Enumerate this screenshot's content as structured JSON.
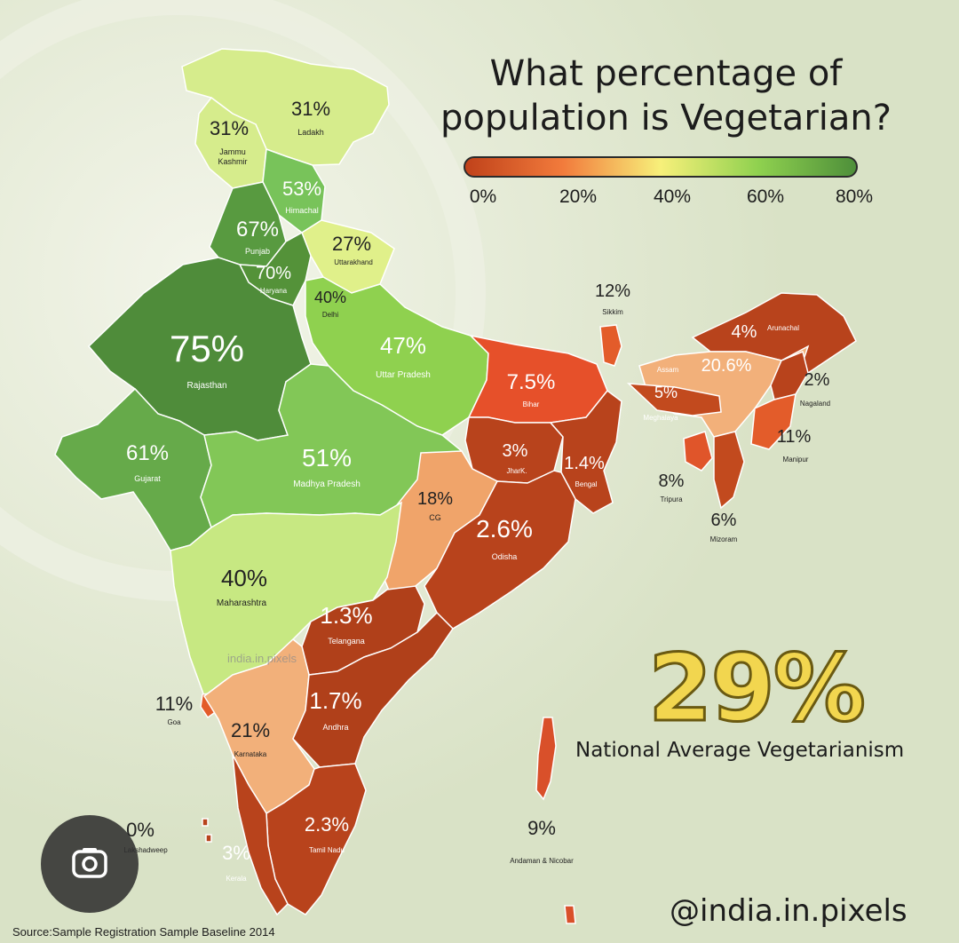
{
  "title_line1": "What percentage of",
  "title_line2": "population is Vegetarian?",
  "legend": {
    "ticks": [
      "0%",
      "20%",
      "40%",
      "60%",
      "80%"
    ],
    "colors": [
      "#c0421a",
      "#f27b3c",
      "#f7f07a",
      "#8fd14f",
      "#4e8f3a"
    ]
  },
  "national_average": {
    "value": "29%",
    "caption": "National Average Vegetarianism"
  },
  "handle": "@india.in.pixels",
  "source": "Source:Sample Registration Sample Baseline 2014",
  "watermark": "india.in.pixels",
  "lens_icon": "google-lens-icon",
  "regions": [
    {
      "id": "ladakh",
      "pct": "31%",
      "name": "Ladakh",
      "color": "#d6ec8c"
    },
    {
      "id": "jk",
      "pct": "31%",
      "name": "Jammu\nKashmir",
      "color": "#d6ec8c"
    },
    {
      "id": "himachal",
      "pct": "53%",
      "name": "Himachal",
      "color": "#78c35a"
    },
    {
      "id": "punjab",
      "pct": "67%",
      "name": "Punjab",
      "color": "#589a40"
    },
    {
      "id": "uttarakhand",
      "pct": "27%",
      "name": "Uttarakhand",
      "color": "#e0f08a"
    },
    {
      "id": "haryana",
      "pct": "70%",
      "name": "Haryana",
      "color": "#549239"
    },
    {
      "id": "delhi",
      "pct": "40%",
      "name": "Delhi",
      "color": "#9fd65a"
    },
    {
      "id": "rajasthan",
      "pct": "75%",
      "name": "Rajasthan",
      "color": "#4f8c3a"
    },
    {
      "id": "up",
      "pct": "47%",
      "name": "Uttar Pradesh",
      "color": "#8fd14f"
    },
    {
      "id": "gujarat",
      "pct": "61%",
      "name": "Gujarat",
      "color": "#66aa4a"
    },
    {
      "id": "mp",
      "pct": "51%",
      "name": "Madhya Pradesh",
      "color": "#82c757"
    },
    {
      "id": "bihar",
      "pct": "7.5%",
      "name": "Bihar",
      "color": "#e6502a"
    },
    {
      "id": "jharkhand",
      "pct": "3%",
      "name": "JharK.",
      "color": "#b8431c"
    },
    {
      "id": "bengal",
      "pct": "1.4%",
      "name": "Bengal",
      "color": "#b8431c"
    },
    {
      "id": "cg",
      "pct": "18%",
      "name": "CG",
      "color": "#f0a46a"
    },
    {
      "id": "odisha",
      "pct": "2.6%",
      "name": "Odisha",
      "color": "#b8431c"
    },
    {
      "id": "maharashtra",
      "pct": "40%",
      "name": "Maharashtra",
      "color": "#c7e882"
    },
    {
      "id": "telangana",
      "pct": "1.3%",
      "name": "Telangana",
      "color": "#b0401a"
    },
    {
      "id": "goa",
      "pct": "11%",
      "name": "Goa",
      "color": "#e35c2a"
    },
    {
      "id": "karnataka",
      "pct": "21%",
      "name": "Karnataka",
      "color": "#f2b07a"
    },
    {
      "id": "andhra",
      "pct": "1.7%",
      "name": "Andhra",
      "color": "#b0401a"
    },
    {
      "id": "tamilnadu",
      "pct": "2.3%",
      "name": "Tamil Nadu",
      "color": "#b8431c"
    },
    {
      "id": "kerala",
      "pct": "3%",
      "name": "Kerala",
      "color": "#b8431c"
    },
    {
      "id": "lakshadweep",
      "pct": "0%",
      "name": "Lakshadweep",
      "color": "#b8431c"
    },
    {
      "id": "andaman",
      "pct": "9%",
      "name": "Andaman & Nicobar",
      "color": "#d9502a"
    },
    {
      "id": "sikkim",
      "pct": "12%",
      "name": "Sikkim",
      "color": "#e35c2a"
    },
    {
      "id": "arunachal",
      "pct": "4%",
      "name": "Arunachal",
      "color": "#b8431c"
    },
    {
      "id": "assam",
      "pct": "20.6%",
      "name": "Assam",
      "color": "#f2b07a"
    },
    {
      "id": "meghalaya",
      "pct": "5%",
      "name": "Meghalaya",
      "color": "#c24a1e"
    },
    {
      "id": "nagaland",
      "pct": "2%",
      "name": "Nagaland",
      "color": "#b8431c"
    },
    {
      "id": "manipur",
      "pct": "11%",
      "name": "Manipur",
      "color": "#e35c2a"
    },
    {
      "id": "tripura",
      "pct": "8%",
      "name": "Tripura",
      "color": "#e0552a"
    },
    {
      "id": "mizoram",
      "pct": "6%",
      "name": "Mizoram",
      "color": "#c24a1e"
    }
  ]
}
